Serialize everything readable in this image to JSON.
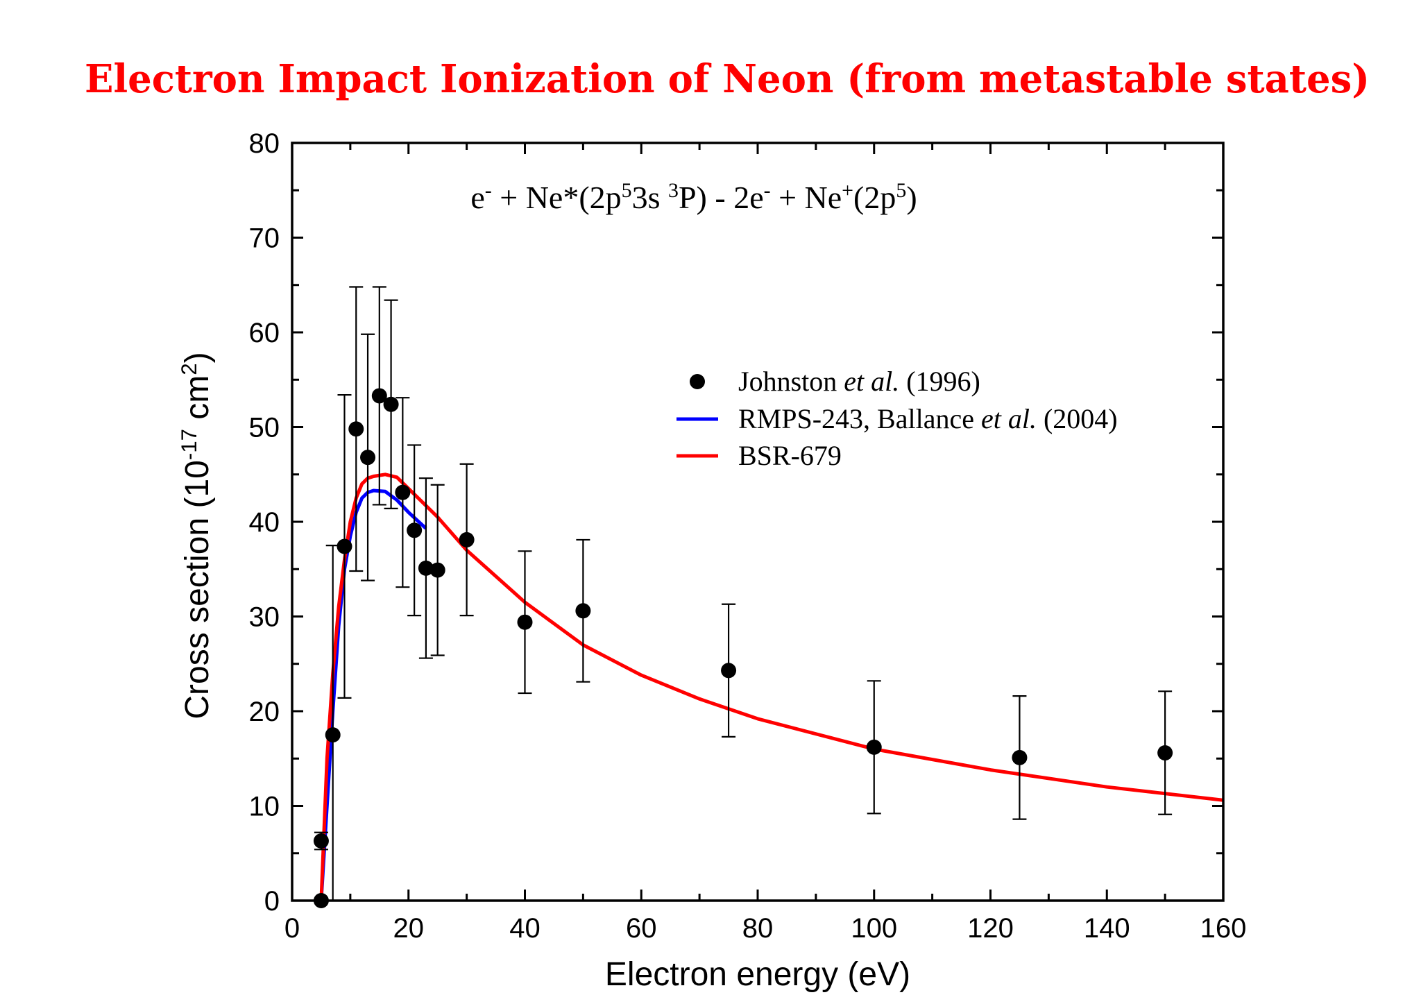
{
  "chart_data": {
    "type": "scatter",
    "title": "Electron Impact Ionization of Neon (from metastable states)",
    "annotation": [
      {
        "t": "e"
      },
      {
        "t": "-",
        "sup": true
      },
      {
        "t": " + Ne*(2p"
      },
      {
        "t": "5",
        "sup": true
      },
      {
        "t": "3s "
      },
      {
        "t": "3",
        "sup": true
      },
      {
        "t": "P)   -   2e"
      },
      {
        "t": "-",
        "sup": true
      },
      {
        "t": " + Ne"
      },
      {
        "t": "+",
        "sup": true
      },
      {
        "t": "(2p"
      },
      {
        "t": "5",
        "sup": true
      },
      {
        "t": ")"
      }
    ],
    "xlabel": "Electron energy (eV)",
    "ylabel": [
      {
        "t": "Cross section (10"
      },
      {
        "t": "-17",
        "sup": true
      },
      {
        "t": " cm"
      },
      {
        "t": "2",
        "sup": true
      },
      {
        "t": ")"
      }
    ],
    "xlim": [
      0,
      160
    ],
    "ylim": [
      0,
      80
    ],
    "xticks": [
      "0",
      "20",
      "40",
      "60",
      "80",
      "100",
      "120",
      "140",
      "160"
    ],
    "yticks": [
      "0",
      "10",
      "20",
      "30",
      "40",
      "50",
      "60",
      "70",
      "80"
    ],
    "grid": false,
    "legend_position": "center-right",
    "series": [
      {
        "name": [
          {
            "t": "Johnston "
          },
          {
            "t": "et al.",
            "italic": true
          },
          {
            "t": " (1996)"
          }
        ],
        "kind": "points-with-errorbars",
        "color": "#000000",
        "x": [
          5,
          5,
          7,
          9,
          11,
          13,
          15,
          17,
          19,
          21,
          23,
          25,
          30,
          40,
          50,
          75,
          100,
          125,
          150
        ],
        "y": [
          6.3,
          0,
          17.5,
          37.4,
          49.8,
          46.8,
          53.3,
          52.4,
          43.1,
          39.1,
          35.1,
          34.9,
          38.1,
          29.4,
          30.6,
          24.3,
          16.2,
          15.1,
          15.6
        ],
        "yerr": [
          0.9,
          0,
          20,
          16,
          15,
          13,
          11.5,
          11,
          10,
          9,
          9.5,
          9,
          8,
          7.5,
          7.5,
          7,
          7,
          6.5,
          6.5
        ]
      },
      {
        "name": [
          {
            "t": "RMPS-243, Ballance "
          },
          {
            "t": "et al.",
            "italic": true
          },
          {
            "t": " (2004)"
          }
        ],
        "kind": "line",
        "color": "#0000ff",
        "x": [
          5,
          6,
          7,
          8,
          9,
          10,
          11,
          12,
          13,
          14,
          16,
          18,
          20,
          23
        ],
        "y": [
          0,
          10,
          20,
          29,
          35,
          38.5,
          41,
          42.5,
          43.1,
          43.3,
          43.2,
          42.3,
          41,
          39.3
        ]
      },
      {
        "name": [
          {
            "t": "BSR-679"
          }
        ],
        "kind": "line",
        "color": "#ff0000",
        "x": [
          5,
          6,
          7,
          8,
          9,
          10,
          11,
          12,
          13,
          14,
          16,
          18,
          20,
          25,
          30,
          40,
          50,
          60,
          70,
          80,
          100,
          120,
          140,
          160
        ],
        "y": [
          0,
          15,
          24,
          31,
          36,
          40,
          42.5,
          44,
          44.6,
          44.8,
          45,
          44.7,
          43.5,
          40.5,
          37,
          31.5,
          27,
          23.8,
          21.3,
          19.2,
          16,
          13.8,
          12,
          10.6
        ]
      }
    ]
  }
}
